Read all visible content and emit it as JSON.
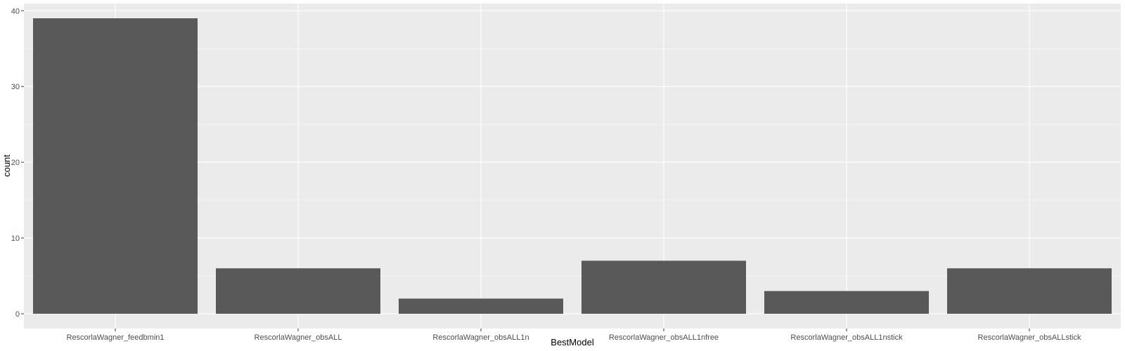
{
  "chart_data": {
    "type": "bar",
    "categories": [
      "RescorlaWagner_feedbmin1",
      "RescorlaWagner_obsALL",
      "RescorlaWagner_obsALL1n",
      "RescorlaWagner_obsALL1nfree",
      "RescorlaWagner_obsALL1nstick",
      "RescorlaWagner_obsALLstick"
    ],
    "values": [
      39,
      6,
      2,
      7,
      3,
      6
    ],
    "xlabel": "BestModel",
    "ylabel": "count",
    "ylim": [
      -1.95,
      40.95
    ],
    "yticks": [
      0,
      10,
      20,
      30,
      40
    ],
    "grid": true,
    "colors": {
      "panel": "#ebebeb",
      "grid_major": "#ffffff",
      "bar": "#595959",
      "tick_text": "#4d4d4d",
      "tick_mark": "#333333"
    }
  }
}
